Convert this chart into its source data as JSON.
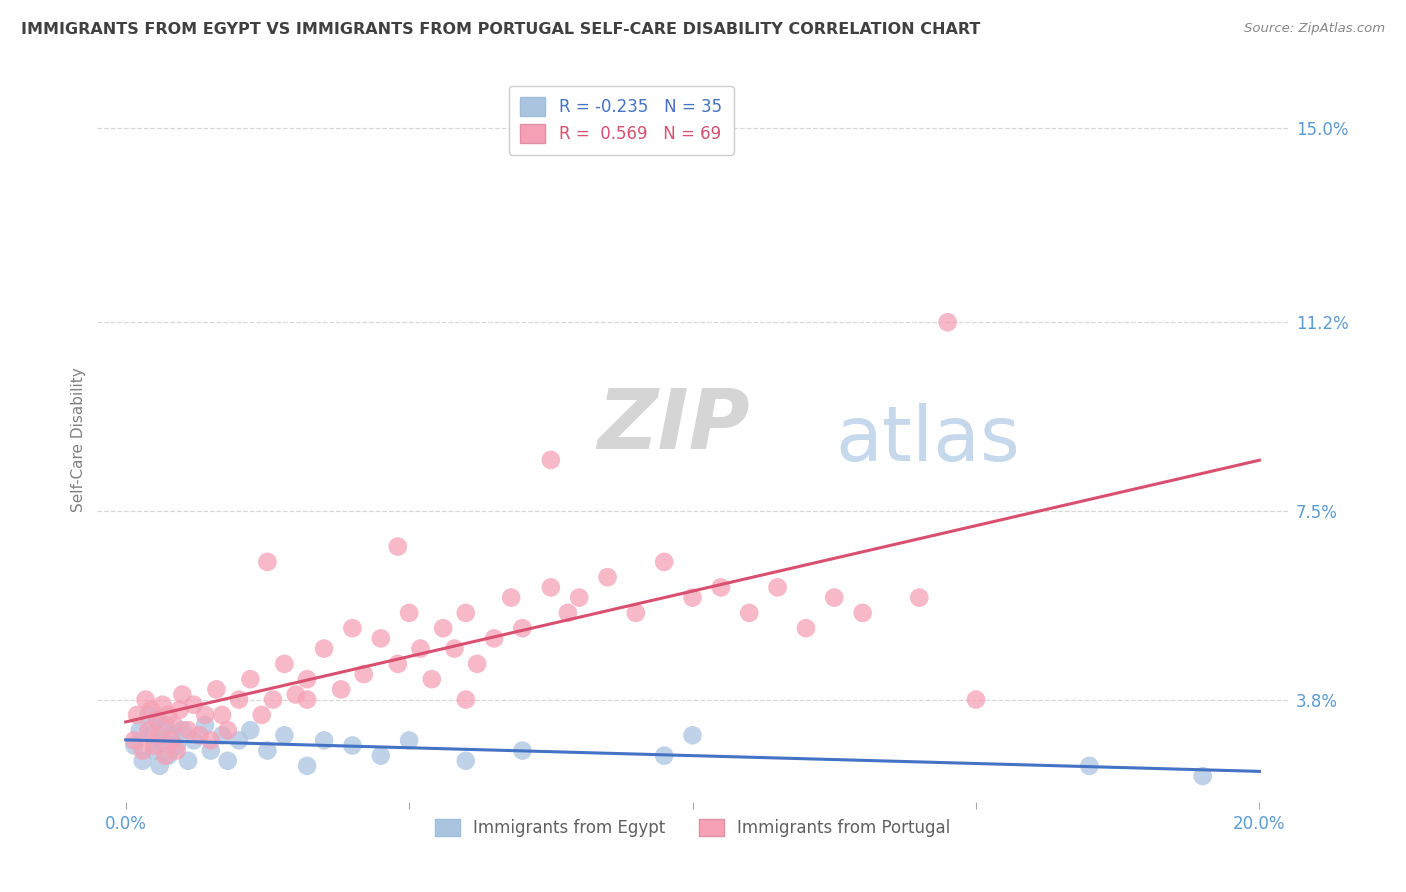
{
  "title": "IMMIGRANTS FROM EGYPT VS IMMIGRANTS FROM PORTUGAL SELF-CARE DISABILITY CORRELATION CHART",
  "source": "Source: ZipAtlas.com",
  "ylabel": "Self-Care Disability",
  "xlabel_ticks": [
    "0.0%",
    "",
    "",
    "",
    "20.0%"
  ],
  "xlabel_vals": [
    0.0,
    5.0,
    10.0,
    15.0,
    20.0
  ],
  "ylabel_ticks_right": [
    "3.8%",
    "7.5%",
    "11.2%",
    "15.0%"
  ],
  "ylabel_vals_right": [
    3.8,
    7.5,
    11.2,
    15.0
  ],
  "xlim": [
    -0.3,
    20.3
  ],
  "ylim": [
    -0.5,
    16.5
  ],
  "plot_ylim_bottom": 1.5,
  "plot_ylim_top": 15.5,
  "egypt_color": "#aac4e0",
  "portugal_color": "#f5a0b5",
  "egypt_line_color": "#4472c4",
  "portugal_line_color": "#d94f70",
  "egypt_R": -0.235,
  "egypt_N": 35,
  "portugal_R": 0.569,
  "portugal_N": 69,
  "legend_label_egypt": "Immigrants from Egypt",
  "legend_label_portugal": "Immigrants from Portugal",
  "watermark_zip": "ZIP",
  "watermark_atlas": "atlas",
  "background_color": "#ffffff",
  "grid_color": "#d8d8d8",
  "title_color": "#404040",
  "axis_label_color": "#808080",
  "right_tick_blue": "#5b9bd5",
  "egypt_scatter": [
    [
      0.15,
      2.9
    ],
    [
      0.25,
      3.2
    ],
    [
      0.3,
      2.6
    ],
    [
      0.4,
      3.5
    ],
    [
      0.45,
      3.1
    ],
    [
      0.5,
      2.8
    ],
    [
      0.55,
      3.4
    ],
    [
      0.6,
      2.5
    ],
    [
      0.65,
      3.0
    ],
    [
      0.7,
      3.3
    ],
    [
      0.75,
      2.7
    ],
    [
      0.8,
      3.1
    ],
    [
      0.9,
      2.9
    ],
    [
      1.0,
      3.2
    ],
    [
      1.1,
      2.6
    ],
    [
      1.2,
      3.0
    ],
    [
      1.4,
      3.3
    ],
    [
      1.5,
      2.8
    ],
    [
      1.7,
      3.1
    ],
    [
      1.8,
      2.6
    ],
    [
      2.0,
      3.0
    ],
    [
      2.2,
      3.2
    ],
    [
      2.5,
      2.8
    ],
    [
      2.8,
      3.1
    ],
    [
      3.2,
      2.5
    ],
    [
      3.5,
      3.0
    ],
    [
      4.0,
      2.9
    ],
    [
      4.5,
      2.7
    ],
    [
      5.0,
      3.0
    ],
    [
      6.0,
      2.6
    ],
    [
      7.0,
      2.8
    ],
    [
      9.5,
      2.7
    ],
    [
      10.0,
      3.1
    ],
    [
      17.0,
      2.5
    ],
    [
      19.0,
      2.3
    ]
  ],
  "portugal_scatter": [
    [
      0.15,
      3.0
    ],
    [
      0.2,
      3.5
    ],
    [
      0.3,
      2.8
    ],
    [
      0.35,
      3.8
    ],
    [
      0.4,
      3.2
    ],
    [
      0.45,
      3.6
    ],
    [
      0.5,
      2.9
    ],
    [
      0.55,
      3.4
    ],
    [
      0.6,
      3.1
    ],
    [
      0.65,
      3.7
    ],
    [
      0.7,
      2.7
    ],
    [
      0.75,
      3.5
    ],
    [
      0.8,
      3.0
    ],
    [
      0.85,
      3.3
    ],
    [
      0.9,
      2.8
    ],
    [
      0.95,
      3.6
    ],
    [
      1.0,
      3.9
    ],
    [
      1.1,
      3.2
    ],
    [
      1.2,
      3.7
    ],
    [
      1.3,
      3.1
    ],
    [
      1.4,
      3.5
    ],
    [
      1.5,
      3.0
    ],
    [
      1.6,
      4.0
    ],
    [
      1.7,
      3.5
    ],
    [
      1.8,
      3.2
    ],
    [
      2.0,
      3.8
    ],
    [
      2.2,
      4.2
    ],
    [
      2.4,
      3.5
    ],
    [
      2.6,
      3.8
    ],
    [
      2.8,
      4.5
    ],
    [
      3.0,
      3.9
    ],
    [
      3.2,
      4.2
    ],
    [
      3.5,
      4.8
    ],
    [
      3.8,
      4.0
    ],
    [
      4.0,
      5.2
    ],
    [
      4.2,
      4.3
    ],
    [
      4.5,
      5.0
    ],
    [
      4.8,
      4.5
    ],
    [
      5.0,
      5.5
    ],
    [
      5.2,
      4.8
    ],
    [
      5.4,
      4.2
    ],
    [
      5.6,
      5.2
    ],
    [
      5.8,
      4.8
    ],
    [
      6.0,
      5.5
    ],
    [
      6.2,
      4.5
    ],
    [
      6.5,
      5.0
    ],
    [
      6.8,
      5.8
    ],
    [
      7.0,
      5.2
    ],
    [
      7.5,
      6.0
    ],
    [
      7.8,
      5.5
    ],
    [
      8.0,
      5.8
    ],
    [
      8.5,
      6.2
    ],
    [
      9.0,
      5.5
    ],
    [
      9.5,
      6.5
    ],
    [
      10.0,
      5.8
    ],
    [
      10.5,
      6.0
    ],
    [
      11.0,
      5.5
    ],
    [
      11.5,
      6.0
    ],
    [
      12.0,
      5.2
    ],
    [
      12.5,
      5.8
    ],
    [
      13.0,
      5.5
    ],
    [
      14.0,
      5.8
    ],
    [
      4.8,
      6.8
    ],
    [
      7.5,
      8.5
    ],
    [
      14.5,
      11.2
    ],
    [
      2.5,
      6.5
    ],
    [
      3.2,
      3.8
    ],
    [
      6.0,
      3.8
    ],
    [
      15.0,
      3.8
    ]
  ]
}
